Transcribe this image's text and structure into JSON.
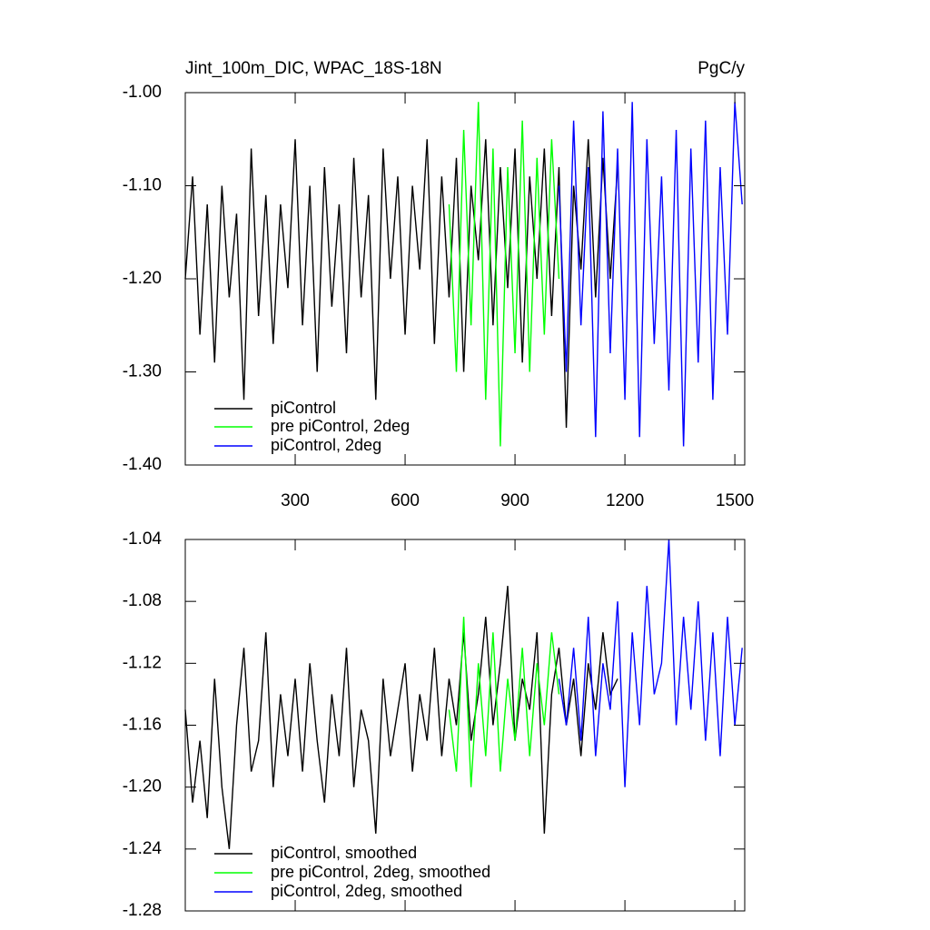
{
  "chart_data": [
    {
      "type": "line",
      "title": "Jint_100m_DIC, WPAC_18S-18N",
      "units": "PgC/y",
      "xlim": [
        0,
        1527
      ],
      "xticks": [
        300,
        600,
        900,
        1200,
        1500
      ],
      "ylim": [
        -1.4,
        -1.0
      ],
      "yticks": [
        {
          "value": -1.0,
          "label": "-1.00"
        },
        {
          "value": -1.1,
          "label": "-1.10"
        },
        {
          "value": -1.2,
          "label": "-1.20"
        },
        {
          "value": -1.3,
          "label": "-1.30"
        },
        {
          "value": -1.4,
          "label": "-1.40"
        }
      ],
      "series": [
        {
          "name": "piControl",
          "color": "#000000",
          "x": [
            0,
            20,
            40,
            60,
            80,
            100,
            120,
            140,
            160,
            180,
            200,
            220,
            240,
            260,
            280,
            300,
            320,
            340,
            360,
            380,
            400,
            420,
            440,
            460,
            480,
            500,
            520,
            540,
            560,
            580,
            600,
            620,
            640,
            660,
            680,
            700,
            720,
            740,
            760,
            780,
            800,
            820,
            840,
            860,
            880,
            900,
            920,
            940,
            960,
            980,
            1000,
            1020,
            1040,
            1060,
            1080,
            1100,
            1120,
            1140,
            1160,
            1180
          ],
          "values": [
            -1.2,
            -1.09,
            -1.26,
            -1.12,
            -1.29,
            -1.1,
            -1.22,
            -1.13,
            -1.33,
            -1.06,
            -1.24,
            -1.11,
            -1.27,
            -1.12,
            -1.21,
            -1.05,
            -1.25,
            -1.1,
            -1.3,
            -1.08,
            -1.23,
            -1.12,
            -1.28,
            -1.07,
            -1.22,
            -1.11,
            -1.33,
            -1.06,
            -1.2,
            -1.09,
            -1.26,
            -1.1,
            -1.19,
            -1.05,
            -1.27,
            -1.09,
            -1.22,
            -1.07,
            -1.3,
            -1.1,
            -1.18,
            -1.05,
            -1.25,
            -1.08,
            -1.21,
            -1.06,
            -1.29,
            -1.09,
            -1.2,
            -1.06,
            -1.24,
            -1.08,
            -1.36,
            -1.1,
            -1.19,
            -1.05,
            -1.22,
            -1.07,
            -1.2,
            -1.08
          ]
        },
        {
          "name": "pre piControl, 2deg",
          "color": "#00ff00",
          "x": [
            720,
            740,
            760,
            780,
            800,
            820,
            840,
            860,
            880,
            900,
            920,
            940,
            960,
            980,
            1000,
            1020
          ],
          "values": [
            -1.12,
            -1.3,
            -1.04,
            -1.25,
            -1.01,
            -1.33,
            -1.06,
            -1.38,
            -1.08,
            -1.28,
            -1.03,
            -1.3,
            -1.07,
            -1.26,
            -1.05,
            -1.2
          ]
        },
        {
          "name": "piControl, 2deg",
          "color": "#0000ff",
          "x": [
            1020,
            1040,
            1060,
            1080,
            1100,
            1120,
            1140,
            1160,
            1180,
            1200,
            1220,
            1240,
            1260,
            1280,
            1300,
            1320,
            1340,
            1360,
            1380,
            1400,
            1420,
            1440,
            1460,
            1480,
            1500,
            1520
          ],
          "values": [
            -1.1,
            -1.3,
            -1.03,
            -1.25,
            -1.08,
            -1.37,
            -1.02,
            -1.28,
            -1.06,
            -1.33,
            -1.01,
            -1.37,
            -1.05,
            -1.27,
            -1.09,
            -1.32,
            -1.04,
            -1.38,
            -1.06,
            -1.29,
            -1.03,
            -1.33,
            -1.08,
            -1.26,
            -1.01,
            -1.12
          ]
        }
      ]
    },
    {
      "type": "line",
      "xlim": [
        0,
        1527
      ],
      "ylim": [
        -1.28,
        -1.04
      ],
      "yticks": [
        -1.04,
        -1.08,
        -1.12,
        -1.16,
        {
          "value": -1.2,
          "label": "-1.20"
        },
        -1.24,
        -1.28
      ],
      "series": [
        {
          "name": "piControl, smoothed",
          "color": "#000000",
          "x": [
            0,
            20,
            40,
            60,
            80,
            100,
            120,
            140,
            160,
            180,
            200,
            220,
            240,
            260,
            280,
            300,
            320,
            340,
            360,
            380,
            400,
            420,
            440,
            460,
            480,
            500,
            520,
            540,
            560,
            580,
            600,
            620,
            640,
            660,
            680,
            700,
            720,
            740,
            760,
            780,
            800,
            820,
            840,
            860,
            880,
            900,
            920,
            940,
            960,
            980,
            1000,
            1020,
            1040,
            1060,
            1080,
            1100,
            1120,
            1140,
            1160,
            1180
          ],
          "values": [
            -1.15,
            -1.21,
            -1.17,
            -1.22,
            -1.13,
            -1.2,
            -1.24,
            -1.16,
            -1.11,
            -1.19,
            -1.17,
            -1.1,
            -1.2,
            -1.14,
            -1.18,
            -1.13,
            -1.19,
            -1.12,
            -1.17,
            -1.21,
            -1.14,
            -1.18,
            -1.11,
            -1.2,
            -1.15,
            -1.17,
            -1.23,
            -1.13,
            -1.18,
            -1.15,
            -1.12,
            -1.19,
            -1.14,
            -1.17,
            -1.11,
            -1.18,
            -1.13,
            -1.16,
            -1.1,
            -1.17,
            -1.14,
            -1.09,
            -1.16,
            -1.12,
            -1.07,
            -1.17,
            -1.13,
            -1.15,
            -1.1,
            -1.23,
            -1.14,
            -1.11,
            -1.16,
            -1.13,
            -1.18,
            -1.12,
            -1.15,
            -1.1,
            -1.14,
            -1.13
          ]
        },
        {
          "name": "pre piControl, 2deg, smoothed",
          "color": "#00ff00",
          "x": [
            720,
            740,
            760,
            780,
            800,
            820,
            840,
            860,
            880,
            900,
            920,
            940,
            960,
            980,
            1000,
            1020
          ],
          "values": [
            -1.15,
            -1.19,
            -1.09,
            -1.2,
            -1.12,
            -1.18,
            -1.1,
            -1.19,
            -1.13,
            -1.17,
            -1.11,
            -1.18,
            -1.12,
            -1.16,
            -1.1,
            -1.14
          ]
        },
        {
          "name": "piControl, 2deg, smoothed",
          "color": "#0000ff",
          "x": [
            1020,
            1040,
            1060,
            1080,
            1100,
            1120,
            1140,
            1160,
            1180,
            1200,
            1220,
            1240,
            1260,
            1280,
            1300,
            1320,
            1340,
            1360,
            1380,
            1400,
            1420,
            1440,
            1460,
            1480,
            1500,
            1520
          ],
          "values": [
            -1.13,
            -1.16,
            -1.11,
            -1.17,
            -1.09,
            -1.18,
            -1.12,
            -1.15,
            -1.08,
            -1.2,
            -1.1,
            -1.16,
            -1.07,
            -1.14,
            -1.12,
            -1.04,
            -1.16,
            -1.09,
            -1.15,
            -1.08,
            -1.17,
            -1.1,
            -1.18,
            -1.09,
            -1.16,
            -1.11
          ]
        }
      ]
    }
  ]
}
